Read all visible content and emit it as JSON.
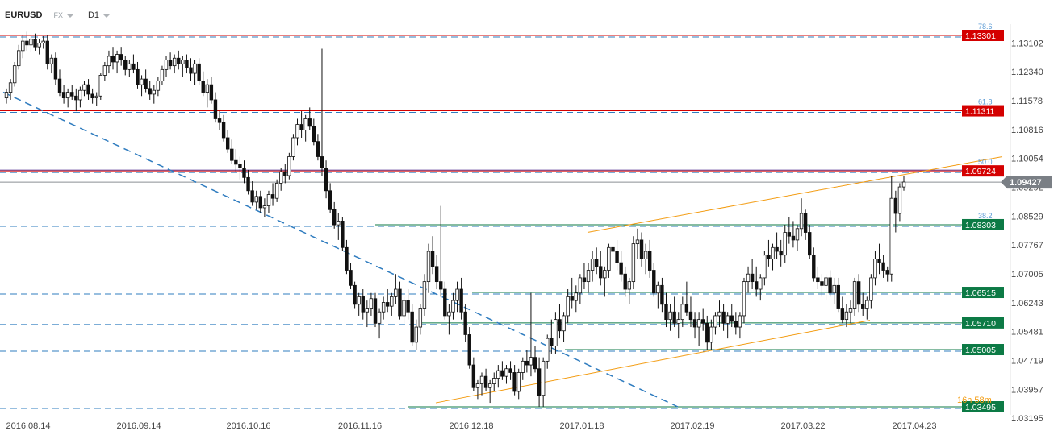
{
  "header": {
    "symbol": "EURUSD",
    "market": "FX",
    "timeframe": "D1"
  },
  "chart_data": {
    "type": "candlestick",
    "symbol": "EURUSD",
    "timeframe": "D1",
    "ylim": [
      1.0312,
      1.1365
    ],
    "y_ticks": [
      "1.13102",
      "1.12340",
      "1.11578",
      "1.10816",
      "1.10054",
      "1.09292",
      "1.08529",
      "1.07767",
      "1.07005",
      "1.06243",
      "1.05481",
      "1.04719",
      "1.03957",
      "1.03195"
    ],
    "x_ticks": [
      "2016.08.14",
      "2016.09.14",
      "2016.10.16",
      "2016.11.16",
      "2016.12.18",
      "2017.01.18",
      "2017.02.19",
      "2017.03.22",
      "2017.04.23"
    ],
    "current_price": "1.09427",
    "levels": [
      {
        "price": 1.13301,
        "label": "1.13301",
        "color": "#d40000",
        "fib": "78.6"
      },
      {
        "price": 1.11311,
        "label": "1.11311",
        "color": "#d40000",
        "fib": "61.8"
      },
      {
        "price": 1.09724,
        "label": "1.09724",
        "color": "#d40000",
        "fib": "50.0"
      },
      {
        "price": 1.08303,
        "label": "1.08303",
        "color": "#0c7a45",
        "fib": "38.2"
      },
      {
        "price": 1.06515,
        "label": "1.06515",
        "color": "#0c7a45"
      },
      {
        "price": 1.0571,
        "label": "1.05710",
        "color": "#0c7a45"
      },
      {
        "price": 1.05005,
        "label": "1.05005",
        "color": "#0c7a45"
      },
      {
        "price": 1.03495,
        "label": "1.03495",
        "color": "#0c7a45"
      }
    ],
    "countdown": "16h 58m",
    "colors": {
      "level_red": "#d40000",
      "level_green": "#0c7a45",
      "fib_dashed": "#2f7cbf",
      "trend_orange": "#f39c12",
      "candle": "#111111",
      "current_price_bg": "#7a7f85"
    },
    "candles": [
      [
        1.1165,
        1.119,
        1.115,
        1.118
      ],
      [
        1.118,
        1.1215,
        1.116,
        1.1205
      ],
      [
        1.1205,
        1.126,
        1.1195,
        1.125
      ],
      [
        1.125,
        1.1305,
        1.124,
        1.129
      ],
      [
        1.129,
        1.133,
        1.127,
        1.1315
      ],
      [
        1.1315,
        1.134,
        1.129,
        1.1305
      ],
      [
        1.1305,
        1.133,
        1.1285,
        1.132
      ],
      [
        1.132,
        1.1335,
        1.129,
        1.13
      ],
      [
        1.13,
        1.132,
        1.128,
        1.131
      ],
      [
        1.131,
        1.1328,
        1.1295,
        1.1315
      ],
      [
        1.1315,
        1.133,
        1.124,
        1.1255
      ],
      [
        1.1255,
        1.128,
        1.123,
        1.127
      ],
      [
        1.127,
        1.1285,
        1.12,
        1.1215
      ],
      [
        1.1215,
        1.124,
        1.117,
        1.118
      ],
      [
        1.118,
        1.12,
        1.115,
        1.1165
      ],
      [
        1.1165,
        1.119,
        1.114,
        1.118
      ],
      [
        1.118,
        1.12,
        1.116,
        1.117
      ],
      [
        1.117,
        1.119,
        1.113,
        1.116
      ],
      [
        1.116,
        1.1195,
        1.114,
        1.1185
      ],
      [
        1.1185,
        1.121,
        1.117,
        1.12
      ],
      [
        1.12,
        1.1215,
        1.116,
        1.1175
      ],
      [
        1.1175,
        1.119,
        1.115,
        1.1165
      ],
      [
        1.1165,
        1.118,
        1.1145,
        1.117
      ],
      [
        1.117,
        1.123,
        1.116,
        1.1225
      ],
      [
        1.1225,
        1.126,
        1.121,
        1.125
      ],
      [
        1.125,
        1.129,
        1.123,
        1.1275
      ],
      [
        1.1275,
        1.13,
        1.124,
        1.126
      ],
      [
        1.126,
        1.129,
        1.123,
        1.128
      ],
      [
        1.128,
        1.13,
        1.125,
        1.1265
      ],
      [
        1.1265,
        1.1275,
        1.1225,
        1.124
      ],
      [
        1.124,
        1.1265,
        1.122,
        1.1255
      ],
      [
        1.1255,
        1.128,
        1.123,
        1.124
      ],
      [
        1.124,
        1.126,
        1.119,
        1.12
      ],
      [
        1.12,
        1.1225,
        1.117,
        1.1215
      ],
      [
        1.1215,
        1.124,
        1.118,
        1.119
      ],
      [
        1.119,
        1.121,
        1.116,
        1.1175
      ],
      [
        1.1175,
        1.12,
        1.115,
        1.1185
      ],
      [
        1.1185,
        1.122,
        1.117,
        1.121
      ],
      [
        1.121,
        1.125,
        1.12,
        1.124
      ],
      [
        1.124,
        1.1275,
        1.122,
        1.1265
      ],
      [
        1.1265,
        1.1285,
        1.124,
        1.125
      ],
      [
        1.125,
        1.128,
        1.123,
        1.127
      ],
      [
        1.127,
        1.129,
        1.124,
        1.1255
      ],
      [
        1.1255,
        1.1275,
        1.122,
        1.1265
      ],
      [
        1.1265,
        1.128,
        1.123,
        1.1245
      ],
      [
        1.1245,
        1.127,
        1.121,
        1.123
      ],
      [
        1.123,
        1.1265,
        1.12,
        1.1255
      ],
      [
        1.1255,
        1.127,
        1.12,
        1.121
      ],
      [
        1.121,
        1.1235,
        1.117,
        1.118
      ],
      [
        1.118,
        1.1215,
        1.114,
        1.12
      ],
      [
        1.12,
        1.122,
        1.115,
        1.116
      ],
      [
        1.116,
        1.118,
        1.11,
        1.111
      ],
      [
        1.111,
        1.113,
        1.108,
        1.11
      ],
      [
        1.11,
        1.112,
        1.105,
        1.106
      ],
      [
        1.106,
        1.108,
        1.102,
        1.103
      ],
      [
        1.103,
        1.1055,
        1.099,
        1.1
      ],
      [
        1.1,
        1.103,
        1.097,
        1.099
      ],
      [
        1.099,
        1.101,
        1.095,
        1.098
      ],
      [
        1.098,
        1.1,
        1.094,
        1.0955
      ],
      [
        1.0955,
        1.0975,
        1.091,
        1.092
      ],
      [
        1.092,
        1.0945,
        1.088,
        1.089
      ],
      [
        1.089,
        1.092,
        1.087,
        1.0905
      ],
      [
        1.0905,
        1.092,
        1.086,
        1.0875
      ],
      [
        1.0875,
        1.09,
        1.085,
        1.088
      ],
      [
        1.088,
        1.092,
        1.086,
        1.091
      ],
      [
        1.091,
        1.094,
        1.088,
        1.09
      ],
      [
        1.09,
        1.095,
        1.089,
        1.094
      ],
      [
        1.094,
        1.098,
        1.092,
        1.097
      ],
      [
        1.097,
        1.099,
        1.094,
        1.096
      ],
      [
        1.096,
        1.102,
        1.095,
        1.101
      ],
      [
        1.101,
        1.107,
        1.1,
        1.106
      ],
      [
        1.106,
        1.111,
        1.104,
        1.1095
      ],
      [
        1.1095,
        1.113,
        1.106,
        1.108
      ],
      [
        1.108,
        1.112,
        1.105,
        1.111
      ],
      [
        1.111,
        1.114,
        1.108,
        1.109
      ],
      [
        1.109,
        1.111,
        1.104,
        1.105
      ],
      [
        1.105,
        1.107,
        1.1,
        1.101
      ],
      [
        1.101,
        1.1295,
        1.096,
        1.098
      ],
      [
        1.098,
        1.1,
        1.09,
        1.092
      ],
      [
        1.092,
        1.094,
        1.086,
        1.087
      ],
      [
        1.087,
        1.089,
        1.082,
        1.083
      ],
      [
        1.083,
        1.086,
        1.079,
        1.084
      ],
      [
        1.084,
        1.085,
        1.076,
        1.077
      ],
      [
        1.077,
        1.079,
        1.07,
        1.071
      ],
      [
        1.071,
        1.073,
        1.066,
        1.067
      ],
      [
        1.067,
        1.068,
        1.061,
        1.062
      ],
      [
        1.062,
        1.065,
        1.059,
        1.064
      ],
      [
        1.064,
        1.066,
        1.058,
        1.06
      ],
      [
        1.06,
        1.063,
        1.056,
        1.061
      ],
      [
        1.061,
        1.065,
        1.059,
        1.0635
      ],
      [
        1.0635,
        1.065,
        1.056,
        1.057
      ],
      [
        1.057,
        1.061,
        1.053,
        1.06
      ],
      [
        1.06,
        1.064,
        1.058,
        1.0625
      ],
      [
        1.0625,
        1.066,
        1.06,
        1.0615
      ],
      [
        1.0615,
        1.065,
        1.059,
        1.064
      ],
      [
        1.064,
        1.07,
        1.062,
        1.066
      ],
      [
        1.066,
        1.068,
        1.058,
        1.059
      ],
      [
        1.059,
        1.064,
        1.057,
        1.063
      ],
      [
        1.063,
        1.066,
        1.058,
        1.06
      ],
      [
        1.06,
        1.062,
        1.051,
        1.052
      ],
      [
        1.052,
        1.058,
        1.05,
        1.056
      ],
      [
        1.056,
        1.062,
        1.054,
        1.061
      ],
      [
        1.061,
        1.07,
        1.059,
        1.068
      ],
      [
        1.068,
        1.078,
        1.065,
        1.076
      ],
      [
        1.076,
        1.08,
        1.07,
        1.072
      ],
      [
        1.072,
        1.075,
        1.066,
        1.068
      ],
      [
        1.068,
        1.088,
        1.064,
        1.066
      ],
      [
        1.066,
        1.068,
        1.058,
        1.059
      ],
      [
        1.059,
        1.062,
        1.054,
        1.06
      ],
      [
        1.06,
        1.065,
        1.058,
        1.063
      ],
      [
        1.063,
        1.068,
        1.06,
        1.066
      ],
      [
        1.066,
        1.069,
        1.058,
        1.06
      ],
      [
        1.06,
        1.062,
        1.052,
        1.054
      ],
      [
        1.054,
        1.056,
        1.045,
        1.046
      ],
      [
        1.046,
        1.048,
        1.039,
        1.04
      ],
      [
        1.04,
        1.042,
        1.037,
        1.041
      ],
      [
        1.041,
        1.044,
        1.038,
        1.043
      ],
      [
        1.043,
        1.045,
        1.039,
        1.04
      ],
      [
        1.04,
        1.042,
        1.036,
        1.041
      ],
      [
        1.041,
        1.044,
        1.039,
        1.0425
      ],
      [
        1.0425,
        1.046,
        1.04,
        1.0445
      ],
      [
        1.0445,
        1.047,
        1.042,
        1.043
      ],
      [
        1.043,
        1.046,
        1.041,
        1.045
      ],
      [
        1.045,
        1.047,
        1.042,
        1.044
      ],
      [
        1.044,
        1.046,
        1.038,
        1.039
      ],
      [
        1.039,
        1.045,
        1.037,
        1.044
      ],
      [
        1.044,
        1.048,
        1.042,
        1.047
      ],
      [
        1.047,
        1.05,
        1.044,
        1.046
      ],
      [
        1.046,
        1.065,
        1.043,
        1.048
      ],
      [
        1.048,
        1.051,
        1.044,
        1.045
      ],
      [
        1.045,
        1.048,
        1.035,
        1.038
      ],
      [
        1.038,
        1.048,
        1.035,
        1.047
      ],
      [
        1.047,
        1.054,
        1.045,
        1.053
      ],
      [
        1.053,
        1.058,
        1.049,
        1.051
      ],
      [
        1.051,
        1.06,
        1.049,
        1.058
      ],
      [
        1.058,
        1.062,
        1.053,
        1.055
      ],
      [
        1.055,
        1.06,
        1.052,
        1.059
      ],
      [
        1.059,
        1.066,
        1.057,
        1.064
      ],
      [
        1.064,
        1.069,
        1.061,
        1.063
      ],
      [
        1.063,
        1.067,
        1.06,
        1.065
      ],
      [
        1.065,
        1.07,
        1.062,
        1.069
      ],
      [
        1.069,
        1.073,
        1.066,
        1.068
      ],
      [
        1.068,
        1.073,
        1.065,
        1.071
      ],
      [
        1.071,
        1.076,
        1.068,
        1.074
      ],
      [
        1.074,
        1.077,
        1.07,
        1.072
      ],
      [
        1.072,
        1.076,
        1.067,
        1.069
      ],
      [
        1.069,
        1.072,
        1.064,
        1.071
      ],
      [
        1.071,
        1.078,
        1.069,
        1.077
      ],
      [
        1.077,
        1.08,
        1.074,
        1.076
      ],
      [
        1.076,
        1.079,
        1.071,
        1.073
      ],
      [
        1.073,
        1.076,
        1.068,
        1.07
      ],
      [
        1.07,
        1.072,
        1.064,
        1.066
      ],
      [
        1.066,
        1.069,
        1.062,
        1.068
      ],
      [
        1.068,
        1.08,
        1.066,
        1.078
      ],
      [
        1.078,
        1.082,
        1.074,
        1.079
      ],
      [
        1.079,
        1.081,
        1.072,
        1.074
      ],
      [
        1.074,
        1.078,
        1.07,
        1.076
      ],
      [
        1.076,
        1.079,
        1.069,
        1.071
      ],
      [
        1.071,
        1.073,
        1.064,
        1.065
      ],
      [
        1.065,
        1.068,
        1.061,
        1.067
      ],
      [
        1.067,
        1.069,
        1.06,
        1.062
      ],
      [
        1.062,
        1.065,
        1.056,
        1.058
      ],
      [
        1.058,
        1.062,
        1.055,
        1.06
      ],
      [
        1.06,
        1.064,
        1.056,
        1.057
      ],
      [
        1.057,
        1.06,
        1.053,
        1.058
      ],
      [
        1.058,
        1.064,
        1.056,
        1.062
      ],
      [
        1.062,
        1.068,
        1.059,
        1.06
      ],
      [
        1.06,
        1.064,
        1.056,
        1.058
      ],
      [
        1.058,
        1.06,
        1.053,
        1.056
      ],
      [
        1.056,
        1.06,
        1.051,
        1.058
      ],
      [
        1.058,
        1.061,
        1.055,
        1.057
      ],
      [
        1.057,
        1.059,
        1.05,
        1.052
      ],
      [
        1.052,
        1.058,
        1.05,
        1.056
      ],
      [
        1.056,
        1.06,
        1.054,
        1.059
      ],
      [
        1.059,
        1.063,
        1.056,
        1.06
      ],
      [
        1.06,
        1.062,
        1.055,
        1.057
      ],
      [
        1.057,
        1.06,
        1.053,
        1.059
      ],
      [
        1.059,
        1.062,
        1.056,
        1.0575
      ],
      [
        1.0575,
        1.06,
        1.054,
        1.056
      ],
      [
        1.056,
        1.06,
        1.053,
        1.059
      ],
      [
        1.059,
        1.069,
        1.057,
        1.068
      ],
      [
        1.068,
        1.072,
        1.065,
        1.07
      ],
      [
        1.07,
        1.074,
        1.066,
        1.068
      ],
      [
        1.068,
        1.072,
        1.064,
        1.066
      ],
      [
        1.066,
        1.07,
        1.063,
        1.069
      ],
      [
        1.069,
        1.076,
        1.067,
        1.075
      ],
      [
        1.075,
        1.079,
        1.072,
        1.074
      ],
      [
        1.074,
        1.078,
        1.071,
        1.077
      ],
      [
        1.077,
        1.081,
        1.074,
        1.076
      ],
      [
        1.076,
        1.079,
        1.072,
        1.075
      ],
      [
        1.075,
        1.083,
        1.073,
        1.081
      ],
      [
        1.081,
        1.085,
        1.078,
        1.08
      ],
      [
        1.08,
        1.084,
        1.077,
        1.079
      ],
      [
        1.079,
        1.083,
        1.076,
        1.082
      ],
      [
        1.082,
        1.09,
        1.08,
        1.086
      ],
      [
        1.086,
        1.087,
        1.079,
        1.081
      ],
      [
        1.081,
        1.083,
        1.074,
        1.075
      ],
      [
        1.075,
        1.077,
        1.068,
        1.069
      ],
      [
        1.069,
        1.072,
        1.066,
        1.068
      ],
      [
        1.068,
        1.07,
        1.064,
        1.067
      ],
      [
        1.067,
        1.07,
        1.063,
        1.069
      ],
      [
        1.069,
        1.071,
        1.064,
        1.065
      ],
      [
        1.065,
        1.069,
        1.062,
        1.067
      ],
      [
        1.067,
        1.069,
        1.06,
        1.061
      ],
      [
        1.061,
        1.064,
        1.057,
        1.058
      ],
      [
        1.058,
        1.062,
        1.056,
        1.06
      ],
      [
        1.06,
        1.063,
        1.057,
        1.061
      ],
      [
        1.061,
        1.069,
        1.059,
        1.068
      ],
      [
        1.068,
        1.07,
        1.06,
        1.062
      ],
      [
        1.062,
        1.065,
        1.059,
        1.061
      ],
      [
        1.061,
        1.064,
        1.058,
        1.063
      ],
      [
        1.063,
        1.07,
        1.061,
        1.069
      ],
      [
        1.069,
        1.076,
        1.067,
        1.074
      ],
      [
        1.074,
        1.078,
        1.07,
        1.073
      ],
      [
        1.073,
        1.075,
        1.069,
        1.071
      ],
      [
        1.071,
        1.072,
        1.068,
        1.07
      ],
      [
        1.07,
        1.096,
        1.068,
        1.09
      ],
      [
        1.09,
        1.092,
        1.081,
        1.086
      ],
      [
        1.086,
        1.094,
        1.084,
        1.093
      ],
      [
        1.093,
        1.096,
        1.092,
        1.0943
      ]
    ]
  }
}
